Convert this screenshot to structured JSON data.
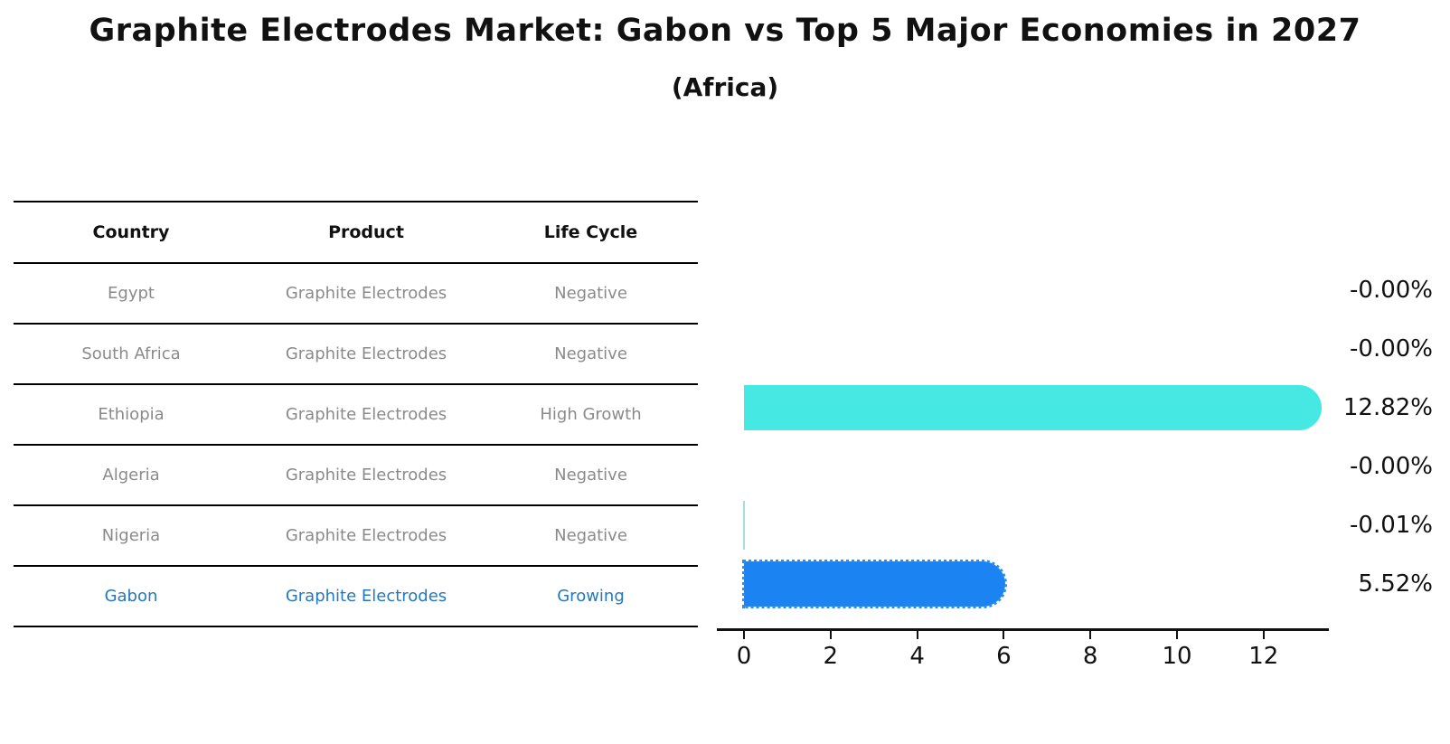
{
  "title": "Graphite Electrodes Market: Gabon vs Top 5 Major Economies in 2027",
  "subtitle": "(Africa)",
  "table": {
    "headers": [
      "Country",
      "Product",
      "Life Cycle"
    ],
    "rows": [
      {
        "country": "Egypt",
        "product": "Graphite Electrodes",
        "life_cycle": "Negative",
        "highlight": false
      },
      {
        "country": "South Africa",
        "product": "Graphite Electrodes",
        "life_cycle": "Negative",
        "highlight": false
      },
      {
        "country": "Ethiopia",
        "product": "Graphite Electrodes",
        "life_cycle": "High Growth",
        "highlight": false
      },
      {
        "country": "Algeria",
        "product": "Graphite Electrodes",
        "life_cycle": "Negative",
        "highlight": false
      },
      {
        "country": "Nigeria",
        "product": "Graphite Electrodes",
        "life_cycle": "Negative",
        "highlight": false
      },
      {
        "country": "Gabon",
        "product": "Graphite Electrodes",
        "life_cycle": "Growing",
        "highlight": true
      }
    ]
  },
  "chart_data": {
    "type": "bar",
    "orientation": "horizontal",
    "title": "Graphite Electrodes Market: Gabon vs Top 5 Major Economies in 2027 (Africa)",
    "categories": [
      "Egypt",
      "South Africa",
      "Ethiopia",
      "Algeria",
      "Nigeria",
      "Gabon"
    ],
    "values": [
      -0.0,
      -0.0,
      12.82,
      -0.0,
      -0.01,
      5.52
    ],
    "value_labels": [
      "-0.00%",
      "-0.00%",
      "12.82%",
      "-0.00%",
      "-0.01%",
      "5.52%"
    ],
    "xlabel": "",
    "ylabel": "",
    "xticks": [
      "0",
      "2",
      "4",
      "6",
      "8",
      "10",
      "12"
    ],
    "xtick_values": [
      0,
      2,
      4,
      6,
      8,
      10,
      12
    ],
    "xlim": [
      -0.6,
      13.5
    ],
    "grid": false,
    "legend": false,
    "colors": {
      "growth_bar": "#45e8e2",
      "gabon_bar": "#1c83f2",
      "gabon_bar_dotted_edge": "#2b8bf0",
      "near_zero_marker": "#a5ded9",
      "highlight_text": "#2478bf",
      "axis": "#111111"
    },
    "bar_style_note": "rounded right caps; Gabon bar drawn with dotted edge highlight"
  }
}
